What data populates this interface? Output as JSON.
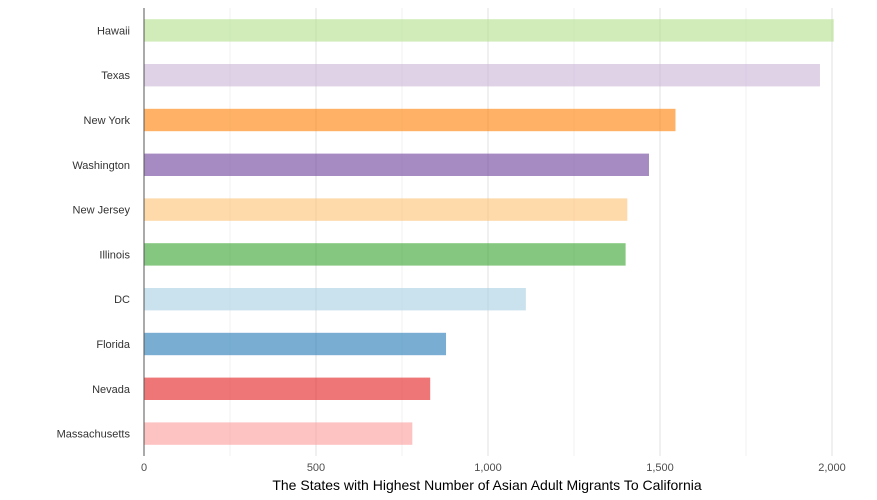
{
  "chart_data": {
    "type": "bar",
    "orientation": "horizontal",
    "title": "",
    "xlabel": "The States with Highest Number of Asian Adult Migrants To California",
    "ylabel": "",
    "xlim": [
      0,
      2000
    ],
    "xticks": [
      0,
      500,
      1000,
      1500,
      2000
    ],
    "xtick_labels": [
      "0",
      "500",
      "1,000",
      "1,500",
      "2,000"
    ],
    "grid": true,
    "legend": "none",
    "categories": [
      "Hawaii",
      "Texas",
      "New York",
      "Washington",
      "New Jersey",
      "Illinois",
      "DC",
      "Florida",
      "Nevada",
      "Massachusetts"
    ],
    "values": [
      2005,
      1965,
      1545,
      1468,
      1405,
      1400,
      1110,
      878,
      832,
      780
    ],
    "colors": [
      "#b2df8a",
      "#cab2d6",
      "#ff7f00",
      "#6a3d9a",
      "#fdbf6f",
      "#33a02c",
      "#a6cee3",
      "#1f78b4",
      "#e31a1c",
      "#fb9a99"
    ]
  }
}
